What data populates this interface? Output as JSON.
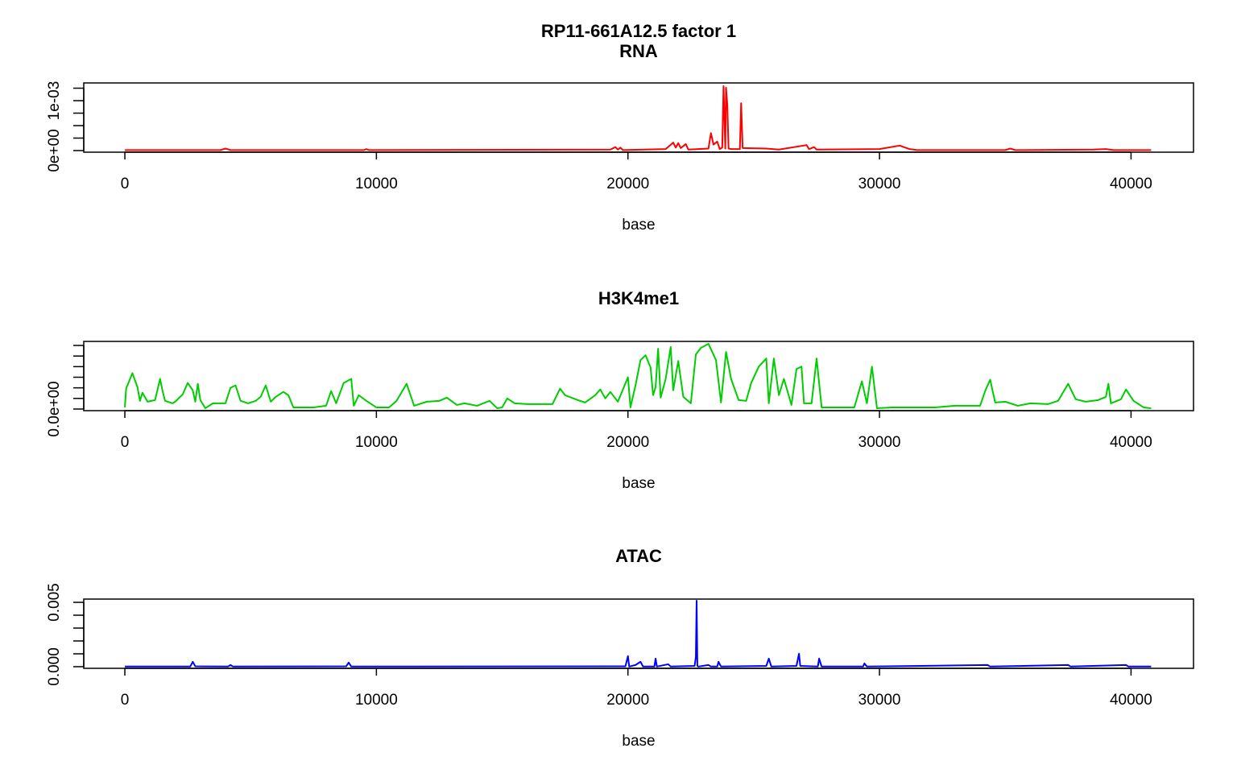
{
  "chart_data": [
    {
      "type": "line",
      "title": "RP11-661A12.5 factor 1",
      "subtitle": "RNA",
      "xlabel": "base",
      "color": "#ff0000",
      "x": [
        0,
        3800,
        4000,
        4200,
        9500,
        9600,
        9700,
        19300,
        19500,
        19600,
        19700,
        19800,
        21500,
        21800,
        21900,
        22000,
        22100,
        22300,
        22400,
        23200,
        23300,
        23400,
        23550,
        23650,
        23750,
        23800,
        23870,
        23900,
        23950,
        24000,
        24100,
        24450,
        24500,
        24560,
        25500,
        26000,
        27100,
        27200,
        27400,
        27500,
        30000,
        30800,
        31200,
        31500,
        35000,
        35200,
        35400,
        38500,
        39000,
        39300,
        40800
      ],
      "values": [
        1e-05,
        1e-05,
        4e-05,
        1e-05,
        1e-05,
        3e-05,
        1e-05,
        2e-05,
        7e-05,
        2e-05,
        6e-05,
        1e-05,
        3e-05,
        0.00016,
        6e-05,
        0.00015,
        5e-05,
        0.00013,
        2e-05,
        4e-05,
        0.00035,
        0.00012,
        0.00018,
        3e-05,
        6e-05,
        0.00129,
        4e-05,
        0.00126,
        0.00092,
        4e-05,
        3e-05,
        3e-05,
        0.00095,
        5e-05,
        4e-05,
        2e-05,
        0.00011,
        3e-05,
        7e-05,
        2e-05,
        3e-05,
        0.0001,
        3e-05,
        1e-05,
        1e-05,
        4e-05,
        1e-05,
        2e-05,
        3e-05,
        1e-05,
        1e-05
      ],
      "xlim": [
        -1634,
        42484
      ],
      "xticks": [
        0,
        10000,
        20000,
        30000,
        40000
      ],
      "ylim": [
        -3.23e-05,
        0.001355
      ],
      "yticks": [
        {
          "value": 0,
          "label": "0e+00"
        },
        {
          "value": 0.001,
          "label": "1e-03"
        }
      ],
      "yminor_ticks": [
        0.00025,
        0.0005,
        0.00075,
        0.00125
      ]
    },
    {
      "type": "line",
      "title": "H3K4me1",
      "xlabel": "base",
      "color": "#00cd00",
      "x": [
        0,
        50,
        300,
        500,
        600,
        700,
        900,
        1200,
        1400,
        1500,
        1600,
        1900,
        2000,
        2300,
        2500,
        2700,
        2800,
        2900,
        3000,
        3200,
        3500,
        3800,
        4000,
        4200,
        4400,
        4600,
        4900,
        5200,
        5400,
        5600,
        5800,
        6000,
        6300,
        6500,
        6700,
        7500,
        8000,
        8200,
        8400,
        8700,
        9000,
        9100,
        9300,
        9600,
        10000,
        10500,
        10800,
        11200,
        11500,
        12000,
        12500,
        12800,
        13200,
        13500,
        14000,
        14500,
        14800,
        15000,
        15200,
        15500,
        16000,
        17000,
        17300,
        17500,
        18000,
        18300,
        18700,
        18900,
        19100,
        19300,
        19600,
        20000,
        20100,
        20300,
        20500,
        20700,
        20900,
        21000,
        21100,
        21200,
        21300,
        21500,
        21700,
        21800,
        22000,
        22200,
        22500,
        22700,
        22900,
        23200,
        23500,
        23700,
        23900,
        24100,
        24400,
        24700,
        24900,
        25200,
        25500,
        25600,
        25800,
        26000,
        26200,
        26500,
        26700,
        26900,
        27000,
        27300,
        27500,
        27700,
        28500,
        29000,
        29300,
        29500,
        29700,
        29900,
        30500,
        31500,
        32200,
        33000,
        34000,
        34200,
        34400,
        34600,
        35000,
        35500,
        36000,
        36700,
        37100,
        37500,
        37800,
        38200,
        38700,
        39000,
        39100,
        39200,
        39600,
        39800,
        40100,
        40500,
        40800
      ],
      "values": [
        7.7e-06,
        9.62e-05,
        0.0001692,
        0.0001038,
        3.85e-05,
        7.69e-05,
        3.46e-05,
        4.23e-05,
        0.0001423,
        8.46e-05,
        3.85e-05,
        2.69e-05,
        3.46e-05,
        6.92e-05,
        0.0001231,
        8.85e-05,
        3.46e-05,
        0.0001192,
        4.23e-05,
        3.8e-06,
        2.69e-05,
        2.69e-05,
        2.69e-05,
        0.0001,
        0.0001115,
        3.85e-05,
        2.69e-05,
        3.85e-05,
        5.77e-05,
        0.0001115,
        3.46e-05,
        5.77e-05,
        8.08e-05,
        6.54e-05,
        7.7e-06,
        7.7e-06,
        1.54e-05,
        8.46e-05,
        2.69e-05,
        0.0001231,
        0.0001423,
        1.54e-05,
        6.54e-05,
        3.85e-05,
        7.7e-06,
        7.7e-06,
        3.85e-05,
        0.0001192,
        1.54e-05,
        3.46e-05,
        3.85e-05,
        5.38e-05,
        1.92e-05,
        2.69e-05,
        1.54e-05,
        3.85e-05,
        3.8e-06,
        7.7e-06,
        5e-05,
        2.69e-05,
        2.31e-05,
        2.31e-05,
        9.62e-05,
        6.54e-05,
        4.23e-05,
        3.08e-05,
        6.54e-05,
        9.23e-05,
        5e-05,
        8.08e-05,
        3.46e-05,
        0.00015,
        7.7e-06,
        0.0001115,
        0.0002308,
        0.0002538,
        0.0001962,
        6.54e-05,
        0.0001038,
        0.0002846,
        5.38e-05,
        0.0001423,
        0.0002923,
        8.85e-05,
        0.0002269,
        5.77e-05,
        2.69e-05,
        0.0002577,
        0.0002885,
        0.0003077,
        0.0002308,
        3.08e-05,
        0.0002692,
        0.0001423,
        4.23e-05,
        3.85e-05,
        0.0001231,
        0.0002,
        0.0002385,
        2.69e-05,
        0.0002385,
        6.54e-05,
        0.0001423,
        1.92e-05,
        0.0001885,
        0.0002,
        2.69e-05,
        2.69e-05,
        0.0002385,
        7.7e-06,
        7.7e-06,
        7.7e-06,
        0.0001308,
        2.69e-05,
        0.0002,
        3.8e-06,
        7.7e-06,
        7.7e-06,
        7.7e-06,
        1.54e-05,
        1.54e-05,
        8.46e-05,
        0.0001385,
        3.08e-05,
        3.46e-05,
        1.54e-05,
        2.69e-05,
        2.31e-05,
        3.85e-05,
        0.0001192,
        4.62e-05,
        3.46e-05,
        4.23e-05,
        5.77e-05,
        0.0001192,
        2.69e-05,
        4.62e-05,
        9.23e-05,
        3.85e-05,
        7.7e-06,
        3.8e-06
      ],
      "xlim": [
        -1634,
        42484
      ],
      "xticks": [
        0,
        10000,
        20000,
        30000,
        40000
      ],
      "ylim": [
        -7.7e-06,
        0.000319
      ],
      "yticks": [
        {
          "value": 0,
          "label": "0.0e+00"
        }
      ],
      "yminor_ticks": [
        5e-05,
        0.0001,
        0.00015,
        0.0002,
        0.00025,
        0.0003
      ]
    },
    {
      "type": "line",
      "title": "ATAC",
      "xlabel": "base",
      "color": "#0000ff",
      "x": [
        0,
        2600,
        2700,
        2800,
        4100,
        4200,
        4300,
        8800,
        8900,
        9000,
        19900,
        20000,
        20050,
        20300,
        20500,
        20600,
        21050,
        21100,
        21150,
        21600,
        21700,
        22650,
        22700,
        22730,
        22760,
        22800,
        23200,
        23300,
        23550,
        23600,
        23700,
        25500,
        25600,
        25700,
        26700,
        26800,
        26850,
        27550,
        27600,
        27700,
        29350,
        29400,
        29500,
        34300,
        34400,
        37500,
        37600,
        39800,
        39900,
        40800
      ],
      "values": [
        1e-05,
        1e-05,
        0.00038,
        3e-05,
        1e-05,
        0.00013,
        1e-05,
        3e-05,
        0.00032,
        1e-05,
        3e-05,
        0.00082,
        1e-05,
        0.00013,
        0.00038,
        1e-05,
        1e-05,
        0.00063,
        1e-05,
        0.00019,
        1e-05,
        6e-05,
        0.00076,
        0.00513,
        6e-05,
        1e-05,
        0.00013,
        1e-05,
        1e-05,
        0.00038,
        1e-05,
        6e-05,
        0.00063,
        1e-05,
        6e-05,
        0.00101,
        6e-05,
        1e-05,
        0.00063,
        1e-05,
        1e-05,
        0.00025,
        1e-05,
        0.00013,
        1e-05,
        0.00013,
        1e-05,
        0.00013,
        1e-05,
        1e-05
      ],
      "xlim": [
        -1634,
        42484
      ],
      "xticks": [
        0,
        10000,
        20000,
        30000,
        40000
      ],
      "ylim": [
        -0.000127,
        0.005253
      ],
      "yticks": [
        {
          "value": 0,
          "label": "0.000"
        },
        {
          "value": 0.005,
          "label": "0.005"
        }
      ],
      "yminor_ticks": [
        0.001,
        0.002,
        0.003,
        0.004
      ]
    }
  ]
}
